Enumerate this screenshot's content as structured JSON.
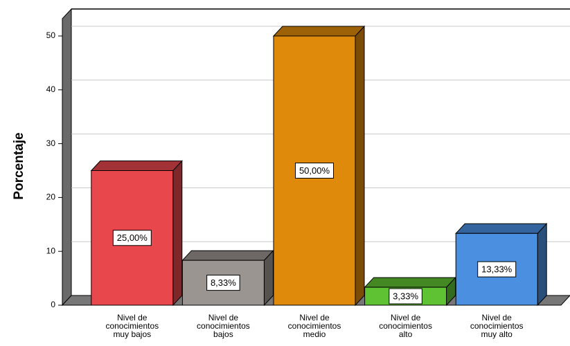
{
  "chart_data": {
    "type": "bar3d",
    "y_label": "Porcentaje",
    "categories": [
      "Nivel de\nconocimientos\nmuy bajos",
      "Nivel de\nconocimientos\nbajos",
      "Nivel de\nconocimientos\nmedio",
      "Nivel de\nconocimientos\nalto",
      "Nivel de\nconocimientos\nmuy alto"
    ],
    "values": [
      25,
      8.33,
      50,
      3.33,
      13.33
    ],
    "value_labels": [
      "25,00%",
      "8,33%",
      "50,00%",
      "3,33%",
      "13,33%"
    ],
    "colors": [
      "#e8474c",
      "#9b9592",
      "#e08a0b",
      "#5fc232",
      "#4a8fe0"
    ],
    "ylim": [
      0,
      50
    ],
    "yticks": [
      0,
      10,
      20,
      30,
      40,
      50
    ],
    "grid": true
  }
}
